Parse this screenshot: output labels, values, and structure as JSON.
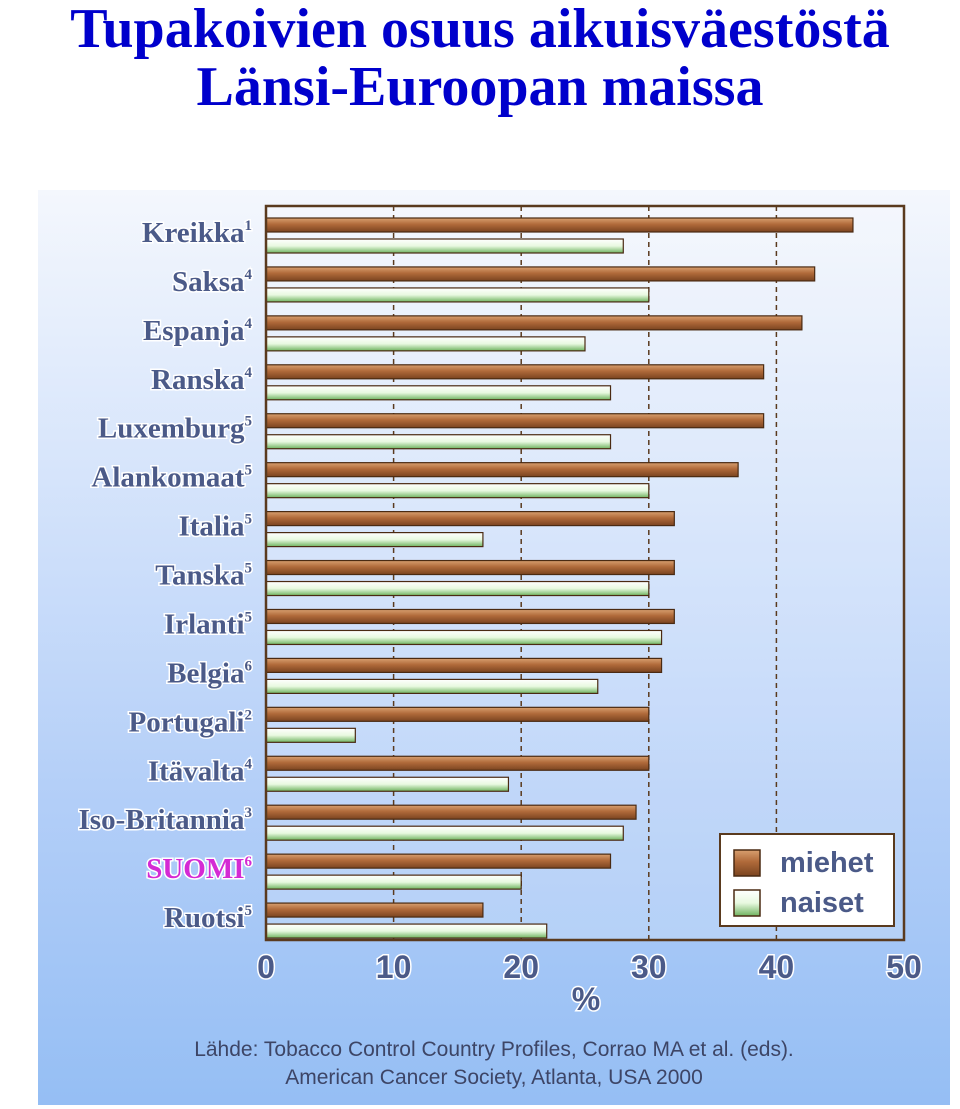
{
  "title": {
    "line1": "Tupakoivien osuus aikuisväestöstä",
    "line2": "Länsi-Euroopan maissa"
  },
  "chart_data": {
    "type": "bar",
    "orientation": "horizontal",
    "categories": [
      "Kreikka",
      "Saksa",
      "Espanja",
      "Ranska",
      "Luxemburg",
      "Alankomaat",
      "Italia",
      "Tanska",
      "Irlanti",
      "Belgia",
      "Portugali",
      "Itävalta",
      "Iso-Britannia",
      "SUOMI",
      "Ruotsi"
    ],
    "superscripts": [
      "1",
      "4",
      "4",
      "4",
      "5",
      "5",
      "5",
      "5",
      "5",
      "6",
      "2",
      "4",
      "3",
      "6",
      "5"
    ],
    "highlight": "SUOMI",
    "series": [
      {
        "name": "miehet",
        "color": "#b06a3a",
        "values": [
          46,
          43,
          42,
          39,
          39,
          37,
          32,
          32,
          32,
          31,
          30,
          30,
          29,
          27,
          17
        ]
      },
      {
        "name": "naiset",
        "color": "#d9f5cf",
        "values": [
          28,
          30,
          25,
          27,
          27,
          30,
          17,
          30,
          31,
          26,
          7,
          19,
          28,
          20,
          22
        ]
      }
    ],
    "xticks": [
      "0",
      "10",
      "20",
      "30",
      "40",
      "50"
    ],
    "xlim": [
      0,
      50
    ],
    "xlabel": "%",
    "grid": "vertical dashed",
    "legend_position": "bottom-right"
  },
  "source": {
    "line1": "Lähde: Tobacco Control Country Profiles, Corrao MA et al. (eds).",
    "line2": "American Cancer Society, Atlanta, USA 2000"
  },
  "colors": {
    "title": "#0000cc",
    "label": "#4b5a88",
    "highlight": "#d42ad4",
    "frame": "#5a3a1e"
  }
}
